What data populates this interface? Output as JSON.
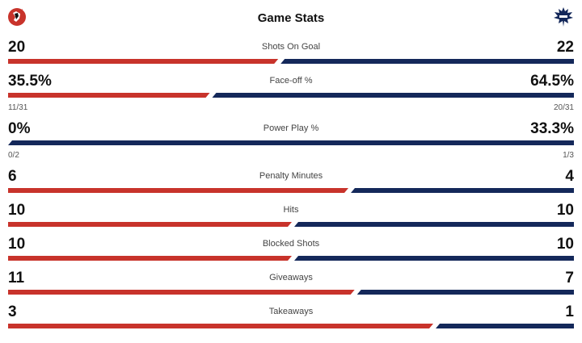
{
  "header": {
    "title": "Game Stats",
    "home_logo": "new-jersey-devils-logo",
    "away_logo": "toronto-maple-leafs-logo"
  },
  "colors": {
    "home": "#c8332b",
    "away": "#14285a",
    "gap": "#ffffff"
  },
  "stats": [
    {
      "label": "Shots On Goal",
      "home": "20",
      "away": "22",
      "home_share": 0.476
    },
    {
      "label": "Face-off %",
      "home": "35.5%",
      "away": "64.5%",
      "home_sub": "11/31",
      "away_sub": "20/31",
      "home_share": 0.355
    },
    {
      "label": "Power Play %",
      "home": "0%",
      "away": "33.3%",
      "home_sub": "0/2",
      "away_sub": "1/3",
      "home_share": 0.0
    },
    {
      "label": "Penalty Minutes",
      "home": "6",
      "away": "4",
      "home_share": 0.6
    },
    {
      "label": "Hits",
      "home": "10",
      "away": "10",
      "home_share": 0.5
    },
    {
      "label": "Blocked Shots",
      "home": "10",
      "away": "10",
      "home_share": 0.5
    },
    {
      "label": "Giveaways",
      "home": "11",
      "away": "7",
      "home_share": 0.611
    },
    {
      "label": "Takeaways",
      "home": "3",
      "away": "1",
      "home_share": 0.75
    }
  ]
}
